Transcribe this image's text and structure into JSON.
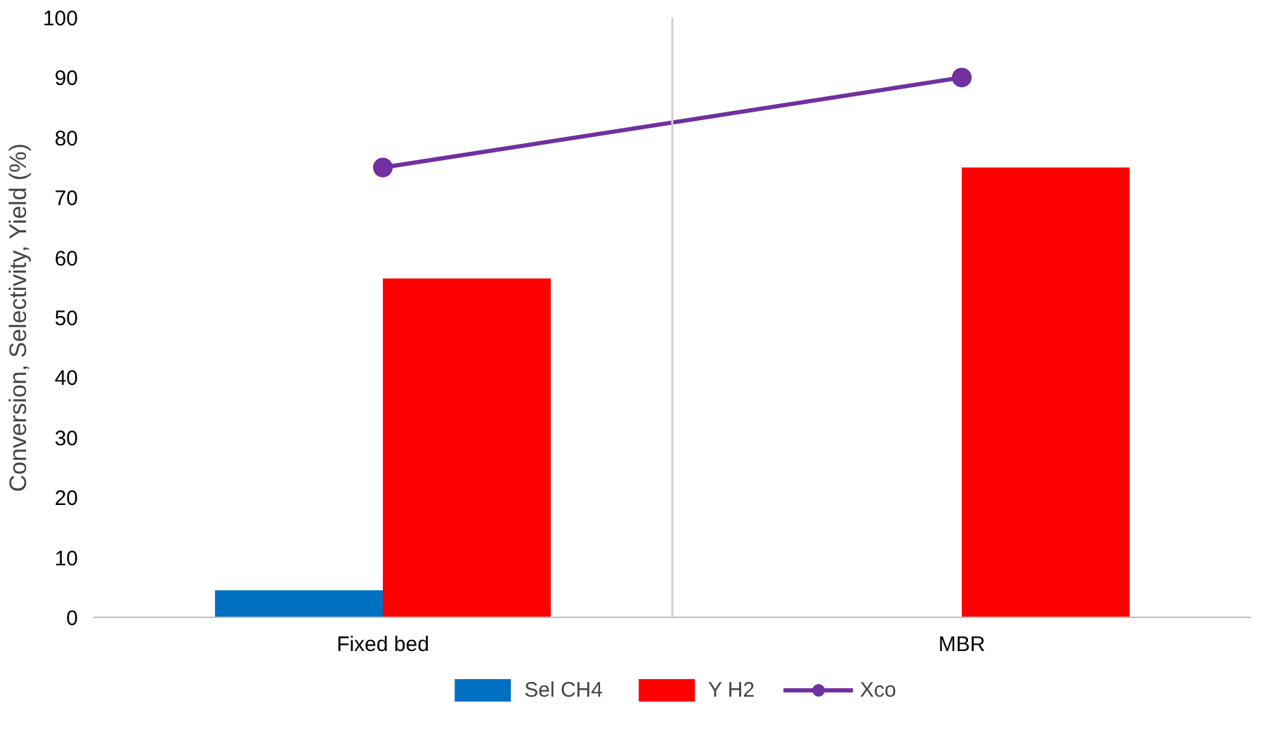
{
  "chart_data": {
    "type": "bar",
    "ylabel": "Conversion, Selectivity, Yield (%)",
    "categories": [
      "Fixed bed",
      "MBR"
    ],
    "series": [
      {
        "name": "Sel CH4",
        "color": "#0070c0",
        "values": [
          4.5,
          0
        ]
      },
      {
        "name": "Y H2",
        "color": "#ff0000",
        "values": [
          56.5,
          75
        ]
      },
      {
        "name": "Xco",
        "type": "line",
        "color": "#7030a0",
        "values": [
          75,
          90
        ],
        "marker": "circle"
      }
    ],
    "ylim": [
      0,
      100
    ],
    "yticks": [
      0,
      10,
      20,
      30,
      40,
      50,
      60,
      70,
      80,
      90,
      100
    ],
    "grid": "x",
    "legend": "bottom"
  }
}
